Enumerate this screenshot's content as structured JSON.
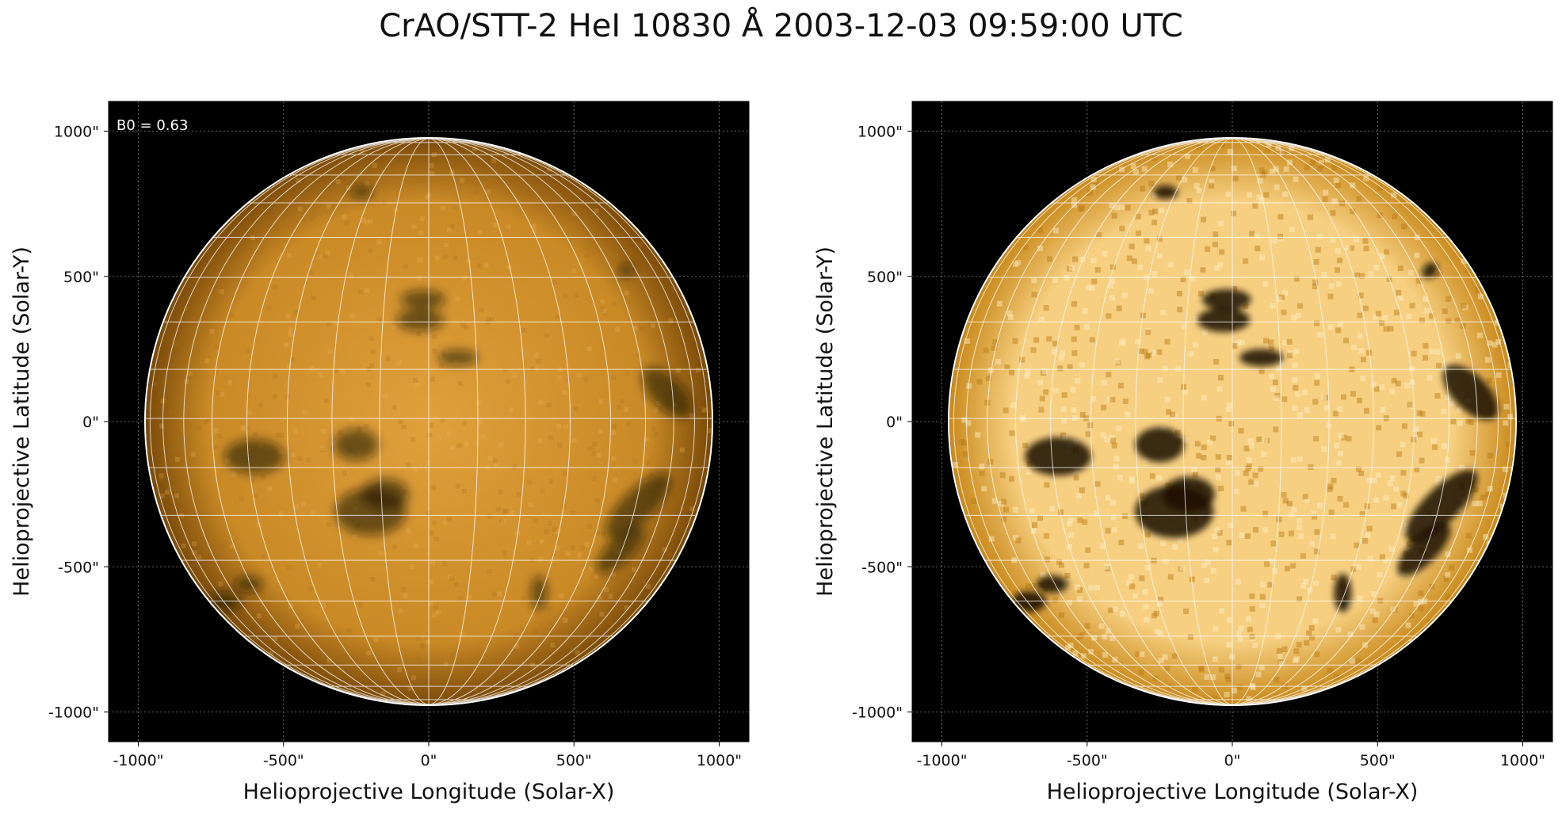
{
  "title": "CrAO/STT-2 HeI 10830 Å 2003-12-03 09:59:00 UTC",
  "annotation": "B0 = 0.63",
  "axes": {
    "xlabel": "Helioprojective Longitude (Solar-X)",
    "ylabel": "Helioprojective Latitude (Solar-Y)",
    "xticks": [
      "-1000\"",
      "-500\"",
      "0\"",
      "500\"",
      "1000\""
    ],
    "yticks": [
      "1000\"",
      "500\"",
      "0\"",
      "-500\"",
      "-1000\""
    ]
  },
  "colors": {
    "background": "#000000",
    "disk_center_left": "#e0a03c",
    "disk_limb_left": "#7a4a08",
    "disk_center_right": "#f6cf80",
    "disk_limb_right": "#c98a1c",
    "grid": "#ffffff",
    "filament": "#1a0e02"
  },
  "panels": [
    {
      "name": "left-panel",
      "variant": "standard"
    },
    {
      "name": "right-panel",
      "variant": "enhanced"
    }
  ]
}
